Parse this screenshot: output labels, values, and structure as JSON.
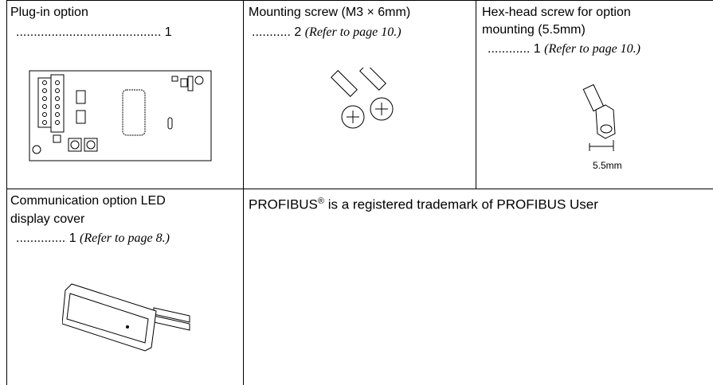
{
  "table": {
    "rows": [
      [
        {
          "label": "Plug-in option",
          "leader": ".........................................",
          "quantity": "1"
        },
        {
          "label": "Mounting screw (M3 × 6mm)",
          "leader": "...........",
          "quantity": "2",
          "reference": "(Refer to page 10.)"
        },
        {
          "label_line1": "Hex-head screw for option",
          "label_line2": "mounting (5.5mm)",
          "leader": "............",
          "quantity": "1",
          "reference": "(Refer to page 10.)",
          "dimension": "5.5mm"
        }
      ],
      [
        {
          "label_line1": "Communication option LED",
          "label_line2": "display cover",
          "leader": "..............",
          "quantity": "1",
          "reference": "(Refer to page 8.)"
        },
        {
          "brand": "PROFIBUS",
          "mark": "®",
          "text": " is a registered trademark of PROFIBUS User"
        }
      ]
    ]
  }
}
